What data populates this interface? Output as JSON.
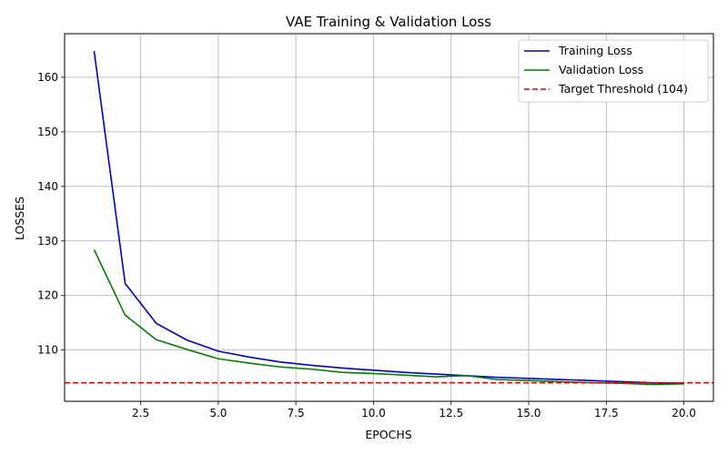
{
  "chart_data": {
    "type": "line",
    "title": "VAE Training & Validation Loss",
    "xlabel": "EPOCHS",
    "ylabel": "LOSSES",
    "xlim": [
      0.05,
      20.95
    ],
    "ylim": [
      100.6,
      168.0
    ],
    "xticks": [
      2.5,
      5.0,
      7.5,
      10.0,
      12.5,
      15.0,
      17.5,
      20.0
    ],
    "xtick_labels": [
      "2.5",
      "5.0",
      "7.5",
      "10.0",
      "12.5",
      "15.0",
      "17.5",
      "20.0"
    ],
    "yticks": [
      110,
      120,
      130,
      140,
      150,
      160
    ],
    "ytick_labels": [
      "110",
      "120",
      "130",
      "140",
      "150",
      "160"
    ],
    "grid": true,
    "legend_position": "top-right",
    "x": [
      1,
      2,
      3,
      4,
      5,
      6,
      7,
      8,
      9,
      10,
      11,
      12,
      13,
      14,
      15,
      16,
      17,
      18,
      19,
      20
    ],
    "series": [
      {
        "name": "Training Loss",
        "color": "#0000cc",
        "dash": "solid",
        "values": [
          164.8,
          122.2,
          114.9,
          111.8,
          109.8,
          108.7,
          107.8,
          107.2,
          106.7,
          106.3,
          105.9,
          105.6,
          105.3,
          105.0,
          104.8,
          104.6,
          104.4,
          104.2,
          104.0,
          103.9
        ]
      },
      {
        "name": "Validation Loss",
        "color": "#008000",
        "dash": "solid",
        "values": [
          128.4,
          116.4,
          111.9,
          110.1,
          108.4,
          107.6,
          106.9,
          106.5,
          105.9,
          105.7,
          105.4,
          105.1,
          105.3,
          104.6,
          104.4,
          104.2,
          104.0,
          103.9,
          103.7,
          103.8
        ]
      }
    ],
    "threshold": {
      "name": "Target Threshold (104)",
      "value": 104,
      "color": "#dd0000",
      "dash": "dashed"
    }
  }
}
